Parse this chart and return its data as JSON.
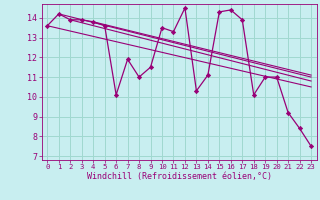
{
  "xlabel": "Windchill (Refroidissement éolien,°C)",
  "background_color": "#c8eef0",
  "grid_color": "#a0d8d0",
  "line_color": "#990077",
  "xlim": [
    -0.5,
    23.5
  ],
  "ylim": [
    6.8,
    14.7
  ],
  "yticks": [
    7,
    8,
    9,
    10,
    11,
    12,
    13,
    14
  ],
  "xticks": [
    0,
    1,
    2,
    3,
    4,
    5,
    6,
    7,
    8,
    9,
    10,
    11,
    12,
    13,
    14,
    15,
    16,
    17,
    18,
    19,
    20,
    21,
    22,
    23
  ],
  "series": [
    [
      0,
      13.6
    ],
    [
      1,
      14.2
    ],
    [
      2,
      13.9
    ],
    [
      3,
      13.9
    ],
    [
      4,
      13.8
    ],
    [
      5,
      13.6
    ],
    [
      6,
      10.1
    ],
    [
      7,
      11.9
    ],
    [
      8,
      11.0
    ],
    [
      9,
      11.5
    ],
    [
      10,
      13.5
    ],
    [
      11,
      13.3
    ],
    [
      12,
      14.5
    ],
    [
      13,
      10.3
    ],
    [
      14,
      11.1
    ],
    [
      15,
      14.3
    ],
    [
      16,
      14.4
    ],
    [
      17,
      13.9
    ],
    [
      18,
      10.1
    ],
    [
      19,
      11.0
    ],
    [
      20,
      11.0
    ],
    [
      21,
      9.2
    ],
    [
      22,
      8.4
    ],
    [
      23,
      7.5
    ]
  ],
  "trend_lines": [
    [
      [
        0,
        13.6
      ],
      [
        23,
        10.5
      ]
    ],
    [
      [
        1,
        14.2
      ],
      [
        23,
        11.0
      ]
    ],
    [
      [
        2,
        13.9
      ],
      [
        23,
        10.8
      ]
    ],
    [
      [
        4,
        13.8
      ],
      [
        23,
        11.1
      ]
    ]
  ]
}
